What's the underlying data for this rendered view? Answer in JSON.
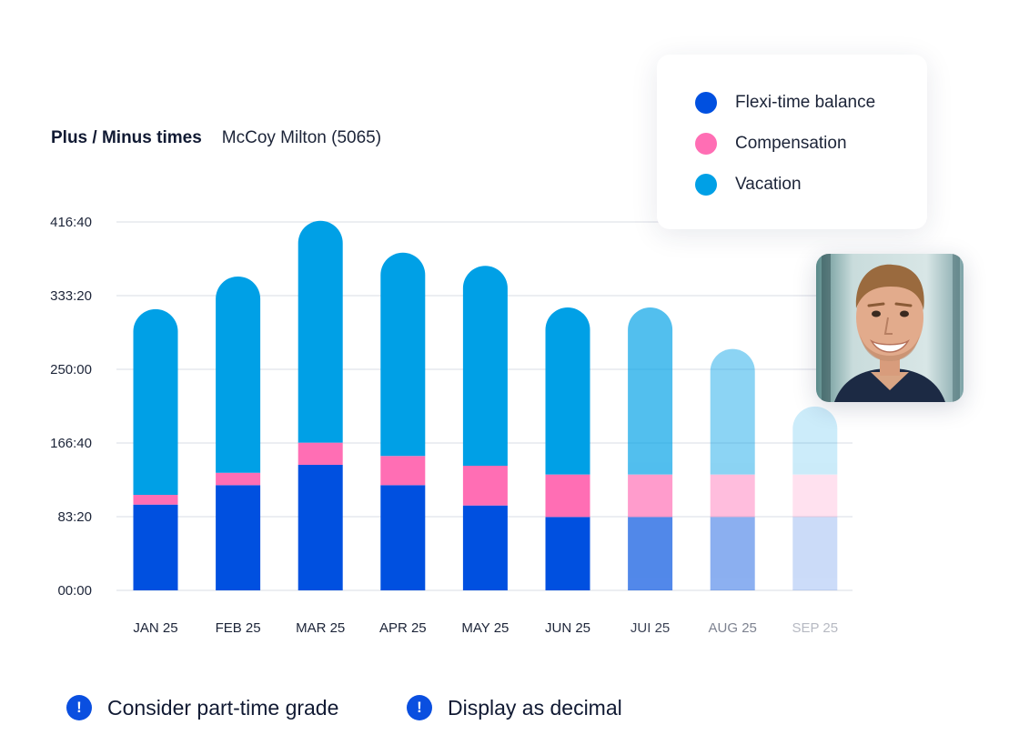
{
  "header": {
    "title": "Plus / Minus times",
    "person": "McCoy Milton (5065)"
  },
  "legend": {
    "items": [
      {
        "label": "Flexi-time balance",
        "color": "#0050e0"
      },
      {
        "label": "Compensation",
        "color": "#ff6eb4"
      },
      {
        "label": "Vacation",
        "color": "#00a0e6"
      }
    ]
  },
  "footer": {
    "items": [
      {
        "label": "Consider part-time grade",
        "icon": "exclamation-icon"
      },
      {
        "label": "Display as decimal",
        "icon": "exclamation-icon"
      }
    ]
  },
  "avatar": {
    "icon": "person-photo"
  },
  "chart_data": {
    "type": "bar",
    "stacked": true,
    "title": "Plus / Minus times",
    "xlabel": "",
    "ylabel": "",
    "categories": [
      "JAN 25",
      "FEB 25",
      "MAR 25",
      "APR 25",
      "MAY 25",
      "JUN 25",
      "JUI 25",
      "AUG 25",
      "SEP 25"
    ],
    "yticks": [
      "00:00",
      "83:20",
      "166:40",
      "250:00",
      "333:20",
      "416:40"
    ],
    "ylim": [
      0,
      416.67
    ],
    "opacity": [
      1,
      1,
      1,
      1,
      1,
      1,
      0.68,
      0.45,
      0.2
    ],
    "label_colors": [
      "#1c2438",
      "#1c2438",
      "#1c2438",
      "#1c2438",
      "#1c2438",
      "#1c2438",
      "#3a4154",
      "#7d8290",
      "#b6b9c2"
    ],
    "series": [
      {
        "name": "Flexi-time balance",
        "color": "#0050e0",
        "values": [
          97,
          119,
          142,
          119,
          96,
          83,
          83,
          83,
          83
        ]
      },
      {
        "name": "Compensation",
        "color": "#ff6eb4",
        "values": [
          11,
          14,
          25,
          33,
          45,
          48,
          48,
          48,
          48
        ]
      },
      {
        "name": "Vacation",
        "color": "#00a0e6",
        "values": [
          210,
          222,
          251,
          230,
          226,
          189,
          189,
          142,
          77
        ]
      }
    ]
  }
}
